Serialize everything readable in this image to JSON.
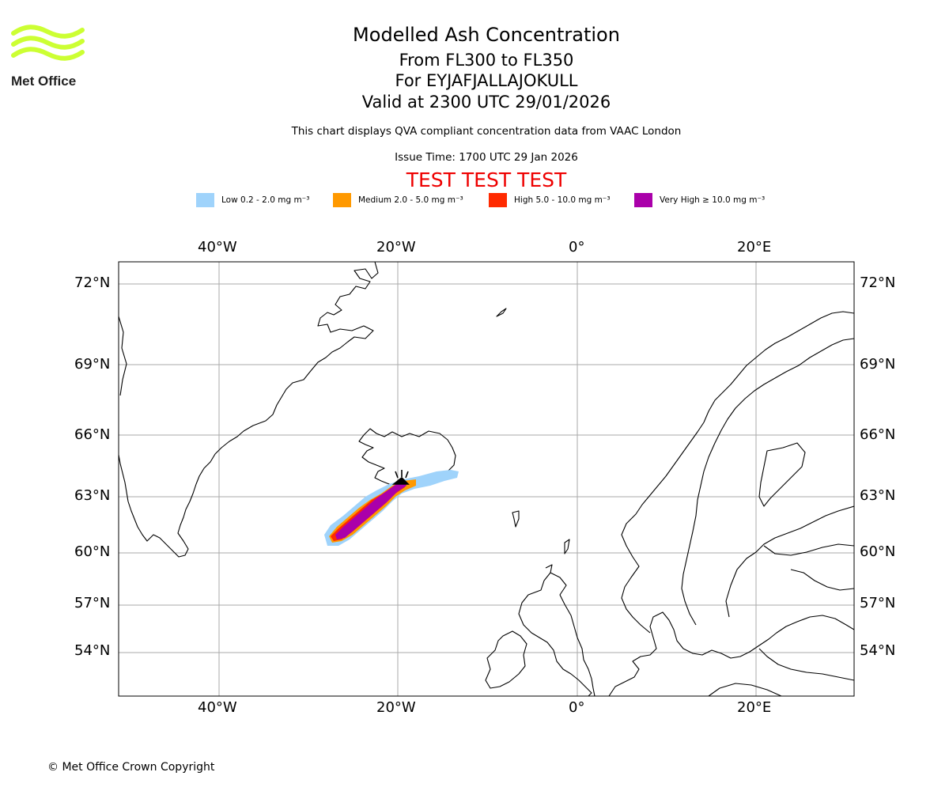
{
  "logo": {
    "text": "Met Office",
    "color": "#ccff33"
  },
  "header": {
    "title": "Modelled Ash Concentration",
    "level_range": "From FL300 to FL350",
    "volcano": "For EYJAFJALLAJOKULL",
    "valid_time": "Valid at 2300 UTC 29/01/2026",
    "description": "This chart displays QVA compliant concentration data from VAAC London",
    "issue_time": "Issue Time: 1700 UTC 29 Jan 2026",
    "test_banner": "TEST TEST TEST",
    "test_color": "#ee0000"
  },
  "legend": [
    {
      "label": "Low 0.2 - 2.0 mg m⁻³",
      "color": "#9fd3fb"
    },
    {
      "label": "Medium 2.0 - 5.0 mg m⁻³",
      "color": "#ff9900"
    },
    {
      "label": "High 5.0 - 10.0 mg m⁻³",
      "color": "#ff2a00"
    },
    {
      "label": "Very High ≥ 10.0 mg m⁻³",
      "color": "#aa00aa"
    }
  ],
  "axes": {
    "lon_labels": [
      "40°W",
      "20°W",
      "0°",
      "20°E"
    ],
    "lat_labels": [
      "72°N",
      "69°N",
      "66°N",
      "63°N",
      "60°N",
      "57°N",
      "54°N"
    ]
  },
  "map": {
    "volcano_marker": "volcano-icon",
    "grid_color": "#aaaaaa"
  },
  "footer": {
    "copyright": "© Met Office Crown Copyright"
  }
}
